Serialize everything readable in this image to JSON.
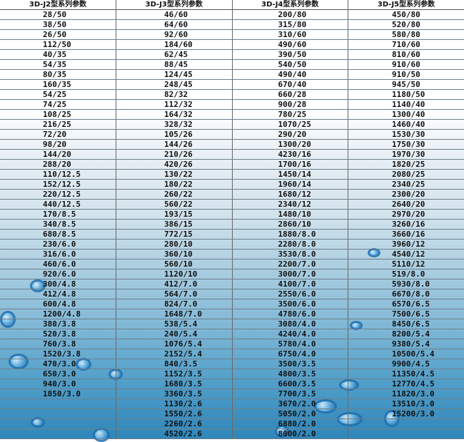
{
  "headers": [
    "3D-J2型系列参数",
    "3D-J3型系列参数",
    "3D-J4型系列参数",
    "3D-J5型系列参数"
  ],
  "columns": [
    [
      "28/50",
      "38/50",
      "26/50",
      "112/50",
      "40/35",
      "54/35",
      "80/35",
      "160/35",
      "54/25",
      "74/25",
      "108/25",
      "216/25",
      "72/20",
      "98/20",
      "144/20",
      "288/20",
      "110/12.5",
      "152/12.5",
      "220/12.5",
      "440/12.5",
      "170/8.5",
      "340/8.5",
      "680/8.5",
      "230/6.0",
      "316/6.0",
      "460/6.0",
      "920/6.0",
      "300/4.8",
      "412/4.8",
      "600/4.8",
      "1200/4.8",
      "380/3.8",
      "520/3.8",
      "760/3.8",
      "1520/3.8",
      "470/3.0",
      "650/3.0",
      "940/3.0",
      "1850/3.0"
    ],
    [
      "46/60",
      "64/60",
      "92/60",
      "184/60",
      "62/45",
      "88/45",
      "124/45",
      "248/45",
      "82/32",
      "112/32",
      "164/32",
      "328/32",
      "105/26",
      "144/26",
      "210/26",
      "420/26",
      "130/22",
      "180/22",
      "260/22",
      "560/22",
      "193/15",
      "386/15",
      "772/15",
      "280/10",
      "360/10",
      "560/10",
      "1120/10",
      "412/7.0",
      "564/7.0",
      "824/7.0",
      "1648/7.0",
      "538/5.4",
      "240/5.4",
      "1076/5.4",
      "2152/5.4",
      "840/3.5",
      "1152/3.5",
      "1680/3.5",
      "3360/3.5",
      "1130/2.6",
      "1550/2.6",
      "2260/2.6",
      "4520/2.6"
    ],
    [
      "200/80",
      "315/80",
      "310/60",
      "490/60",
      "390/50",
      "540/50",
      "490/40",
      "670/40",
      "660/28",
      "900/28",
      "780/25",
      "1070/25",
      "290/20",
      "1300/20",
      "4230/16",
      "1700/16",
      "1450/14",
      "1960/14",
      "1680/12",
      "2340/12",
      "1480/10",
      "2860/10",
      "1880/8.0",
      "2280/8.0",
      "3530/8.0",
      "2200/7.0",
      "3000/7.0",
      "4100/7.0",
      "2550/6.0",
      "3500/6.0",
      "4780/6.0",
      "3080/4.0",
      "4240/4.0",
      "5780/4.0",
      "6750/4.0",
      "3500/3.5",
      "4800/3.5",
      "6600/3.5",
      "7700/3.5",
      "3670/2.0",
      "5050/2.0",
      "6880/2.0",
      "8000/2.0"
    ],
    [
      "450/80",
      "520/80",
      "580/80",
      "710/60",
      "810/60",
      "910/60",
      "910/50",
      "945/50",
      "1180/50",
      "1140/40",
      "1300/40",
      "1460/40",
      "1530/30",
      "1750/30",
      "1970/30",
      "1820/25",
      "2080/25",
      "2340/25",
      "2300/20",
      "2640/20",
      "2970/20",
      "3260/16",
      "3660/16",
      "3960/12",
      "4540/12",
      "5110/12",
      "519/8.0",
      "5930/8.0",
      "6670/8.0",
      "6570/6.5",
      "7500/6.5",
      "8450/6.5",
      "8200/5.4",
      "9380/5.4",
      "10500/5.4",
      "9900/4.5",
      "11350/4.5",
      "12770/4.5",
      "11820/3.0",
      "13510/3.0",
      "15200/3.0"
    ]
  ],
  "colors": {
    "background_top": "#ffffff",
    "background_bottom": "#2f86ba",
    "bubble": "#1f6fb0"
  }
}
